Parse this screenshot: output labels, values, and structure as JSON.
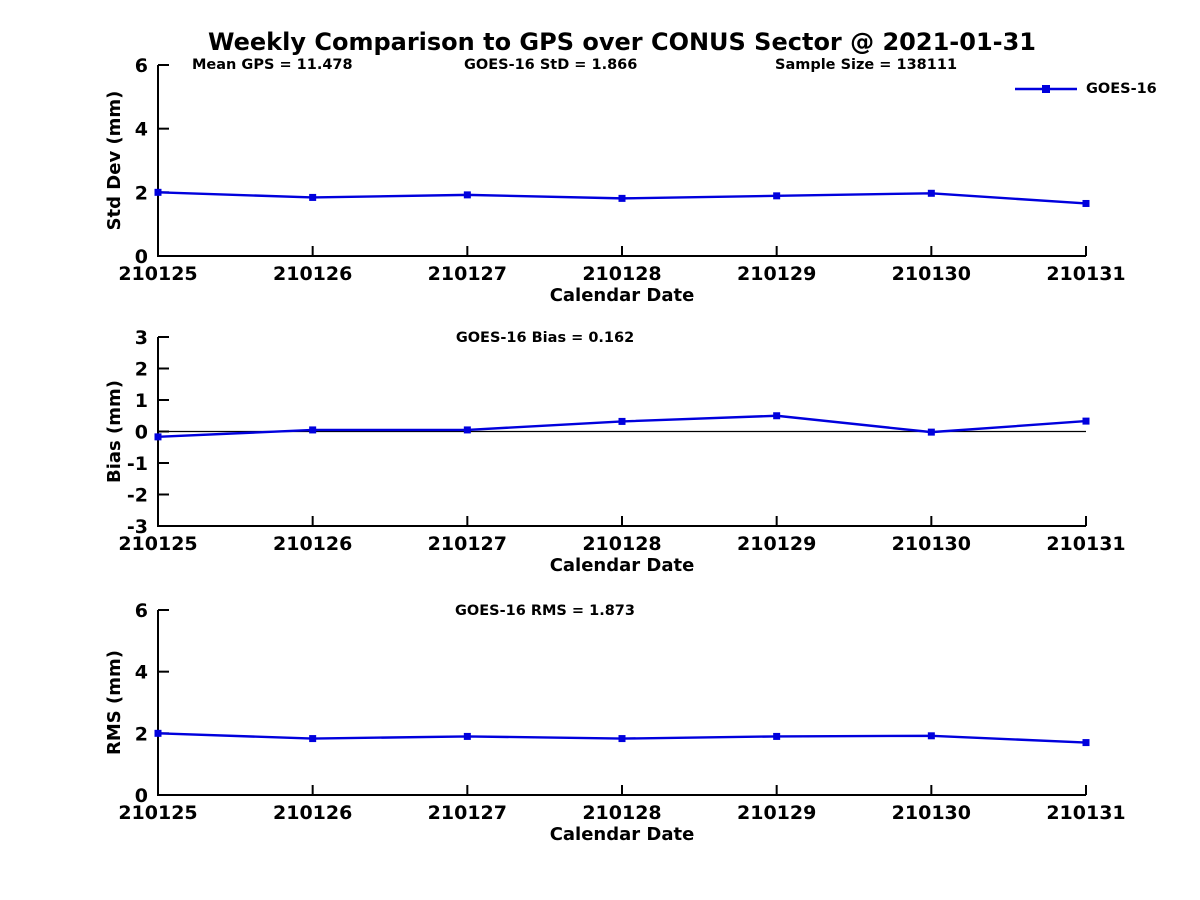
{
  "figure": {
    "title": "Weekly Comparison to GPS over CONUS Sector @ 2021-01-31",
    "background_color": "#ffffff",
    "text_color": "#000000",
    "accent_color": "#0000dd",
    "annotations": [
      {
        "id": "mean-gps",
        "text": "Mean GPS = 11.478"
      },
      {
        "id": "goes16-std",
        "text": "GOES-16 StD = 1.866"
      },
      {
        "id": "sample-size",
        "text": "Sample Size = 138111"
      }
    ],
    "legend": {
      "label": "GOES-16",
      "line_color": "#0000dd",
      "marker": "square",
      "position": "top-right"
    }
  },
  "chart_data": [
    {
      "id": "std-dev",
      "type": "line",
      "title": "",
      "categories": [
        "210125",
        "210126",
        "210127",
        "210128",
        "210129",
        "210130",
        "210131"
      ],
      "series": [
        {
          "name": "GOES-16",
          "color": "#0000dd",
          "marker": "square",
          "values": [
            2.0,
            1.84,
            1.92,
            1.81,
            1.89,
            1.97,
            1.65
          ]
        }
      ],
      "xlabel": "Calendar Date",
      "ylabel": "Std Dev (mm)",
      "ylim": [
        0,
        6
      ],
      "yticks": [
        0,
        2,
        4,
        6
      ],
      "grid": false,
      "zero_line": false
    },
    {
      "id": "bias",
      "type": "line",
      "title": "GOES-16 Bias  = 0.162",
      "categories": [
        "210125",
        "210126",
        "210127",
        "210128",
        "210129",
        "210130",
        "210131"
      ],
      "series": [
        {
          "name": "GOES-16",
          "color": "#0000dd",
          "marker": "square",
          "values": [
            -0.17,
            0.05,
            0.05,
            0.32,
            0.5,
            -0.02,
            0.33
          ]
        }
      ],
      "xlabel": "Calendar Date",
      "ylabel": "Bias (mm)",
      "ylim": [
        -3,
        3
      ],
      "yticks": [
        -3,
        -2,
        -1,
        0,
        1,
        2,
        3
      ],
      "grid": false,
      "zero_line": true
    },
    {
      "id": "rms",
      "type": "line",
      "title": "GOES-16 RMS = 1.873",
      "categories": [
        "210125",
        "210126",
        "210127",
        "210128",
        "210129",
        "210130",
        "210131"
      ],
      "series": [
        {
          "name": "GOES-16",
          "color": "#0000dd",
          "marker": "square",
          "values": [
            2.0,
            1.83,
            1.9,
            1.83,
            1.9,
            1.92,
            1.7
          ]
        }
      ],
      "xlabel": "Calendar Date",
      "ylabel": "RMS (mm)",
      "ylim": [
        0,
        6
      ],
      "yticks": [
        0,
        2,
        4,
        6
      ],
      "grid": false,
      "zero_line": false
    }
  ]
}
